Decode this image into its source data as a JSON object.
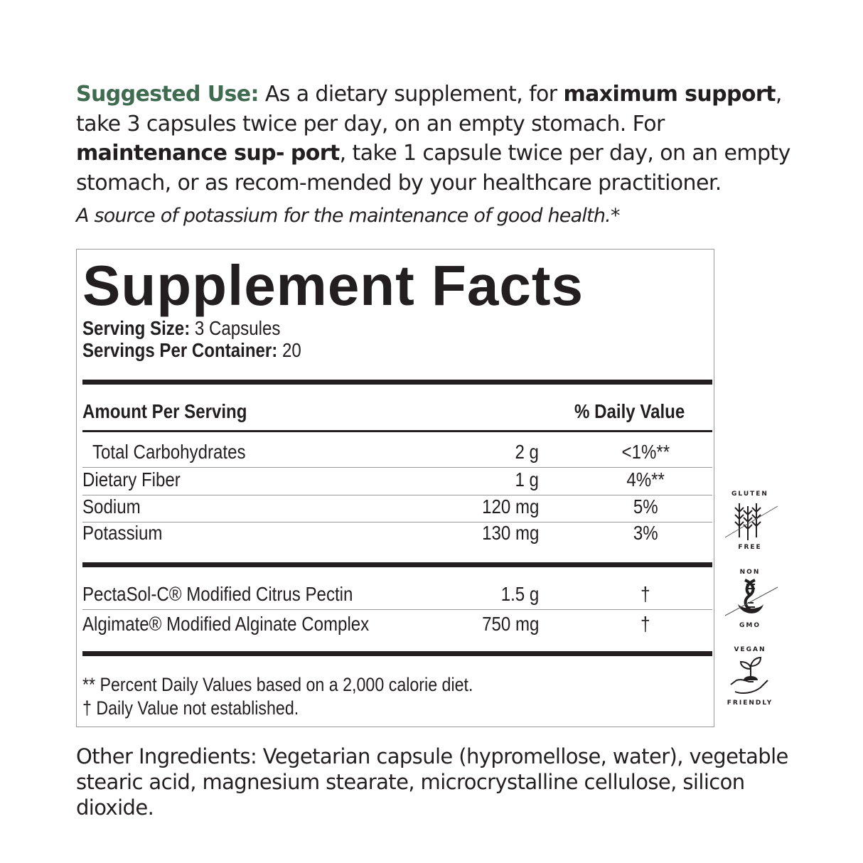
{
  "suggested_use": {
    "label": "Suggested Use:",
    "t1": " As a dietary supplement, for ",
    "b1": "maximum support",
    "t2": ", take 3 capsules twice per day, on an empty stomach. For ",
    "b2": "maintenance sup-",
    "b3": "port",
    "t3": ", take 1 capsule twice per day, on an empty stomach, or as recom-mended by your healthcare practitioner."
  },
  "note": "A source of potassium for the maintenance of good health.*",
  "facts": {
    "title": "Supplement Facts",
    "serving_size_label": "Serving Size:",
    "serving_size": " 3 Capsules",
    "servings_label": "Servings Per Container:",
    "servings": " 20",
    "amount_header": "Amount Per Serving",
    "dv_header": "% Daily Value",
    "rows": [
      {
        "name": "Total Carbohydrates",
        "amount": "2 g",
        "dv": "<1%**"
      },
      {
        "name": "Dietary Fiber",
        "amount": "1 g",
        "dv": "4%**"
      },
      {
        "name": "Sodium",
        "amount": "120 mg",
        "dv": "5%"
      },
      {
        "name": "Potassium",
        "amount": "130 mg",
        "dv": "3%"
      }
    ],
    "rows2": [
      {
        "name": "PectaSol-C® Modified Citrus Pectin",
        "amount": "1.5 g",
        "dv": "†"
      },
      {
        "name": "Algimate® Modified Alginate Complex",
        "amount": "750 mg",
        "dv": "†"
      }
    ],
    "foot1": "** Percent Daily Values based on a 2,000 calorie diet.",
    "foot2": "† Daily Value not established."
  },
  "badges": {
    "gluten_top": "GLUTEN",
    "gluten_bottom": "FREE",
    "gmo_top": "NON",
    "gmo_bottom": "GMO",
    "vegan_top": "VEGAN",
    "vegan_bottom": "FRIENDLY"
  },
  "other": {
    "label": "Other Ingredients:",
    "text": " Vegetarian capsule (hypromellose, water), vegetable stearic acid, magnesium stearate, microcrystalline cellulose, silicon dioxide."
  },
  "colors": {
    "accent": "#3f6b50",
    "text": "#231f20"
  }
}
